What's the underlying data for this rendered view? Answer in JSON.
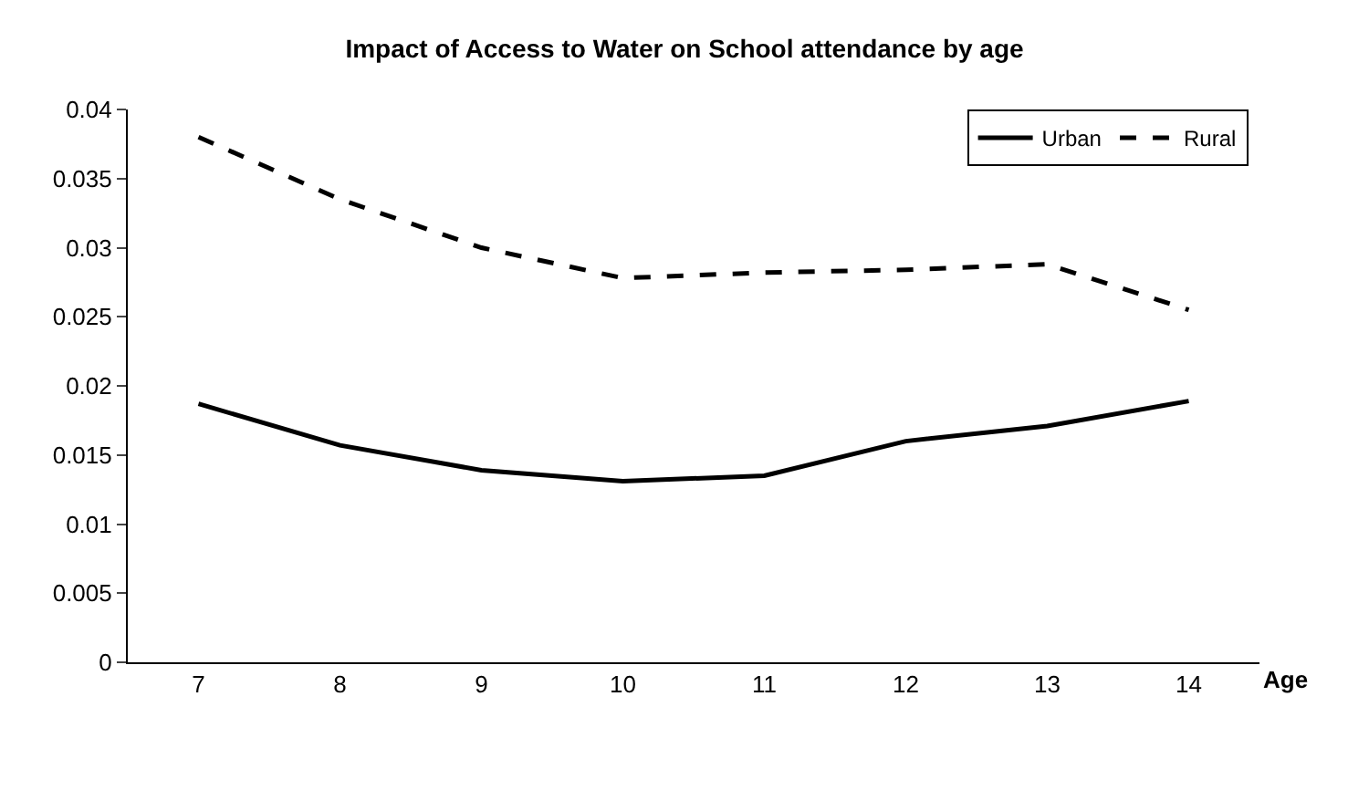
{
  "chart_data": {
    "type": "line",
    "title": "Impact of Access to Water on School attendance by age",
    "xlabel": "Age",
    "categories": [
      "7",
      "8",
      "9",
      "10",
      "11",
      "12",
      "13",
      "14"
    ],
    "series": [
      {
        "name": "Urban",
        "color": "#000000",
        "line_style": "solid",
        "values": [
          0.0187,
          0.0157,
          0.0139,
          0.0131,
          0.0135,
          0.016,
          0.0171,
          0.0189
        ]
      },
      {
        "name": "Rural",
        "color": "#000000",
        "line_style": "dashed",
        "values": [
          0.038,
          0.0335,
          0.03,
          0.0278,
          0.0282,
          0.0284,
          0.0288,
          0.0255
        ]
      }
    ],
    "ylim": [
      0,
      0.04
    ],
    "yticks": [
      {
        "value": 0,
        "label": "0"
      },
      {
        "value": 0.005,
        "label": "0.005"
      },
      {
        "value": 0.01,
        "label": "0.01"
      },
      {
        "value": 0.015,
        "label": "0.015"
      },
      {
        "value": 0.02,
        "label": "0.02"
      },
      {
        "value": 0.025,
        "label": "0.025"
      },
      {
        "value": 0.03,
        "label": "0.03"
      },
      {
        "value": 0.035,
        "label": "0.035"
      },
      {
        "value": 0.04,
        "label": "0.04"
      }
    ],
    "grid": false,
    "legend": "top right",
    "marker": "none"
  }
}
